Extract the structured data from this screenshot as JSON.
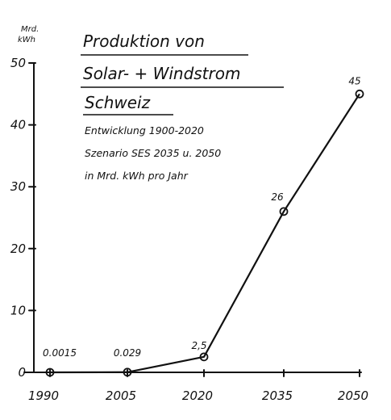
{
  "chart_data": {
    "type": "line",
    "title_lines": [
      "Produktion von",
      "Solar- + Windstrom",
      "Schweiz"
    ],
    "subtitle_lines": [
      "Entwicklung 1900-2020",
      "Szenario SES 2035 u. 2050",
      "in Mrd. kWh pro Jahr"
    ],
    "y_unit_lines": [
      "Mrd.",
      "kWh"
    ],
    "x": [
      "1990",
      "2005",
      "2020",
      "2035",
      "2050"
    ],
    "values": [
      0.0015,
      0.029,
      2.5,
      26,
      45
    ],
    "data_labels": [
      "0.0015",
      "0.029",
      "2,5",
      "26",
      "45"
    ],
    "y_ticks": [
      "0",
      "10",
      "20",
      "30",
      "40",
      "50"
    ],
    "ylim": [
      0,
      50
    ],
    "grid": false
  }
}
